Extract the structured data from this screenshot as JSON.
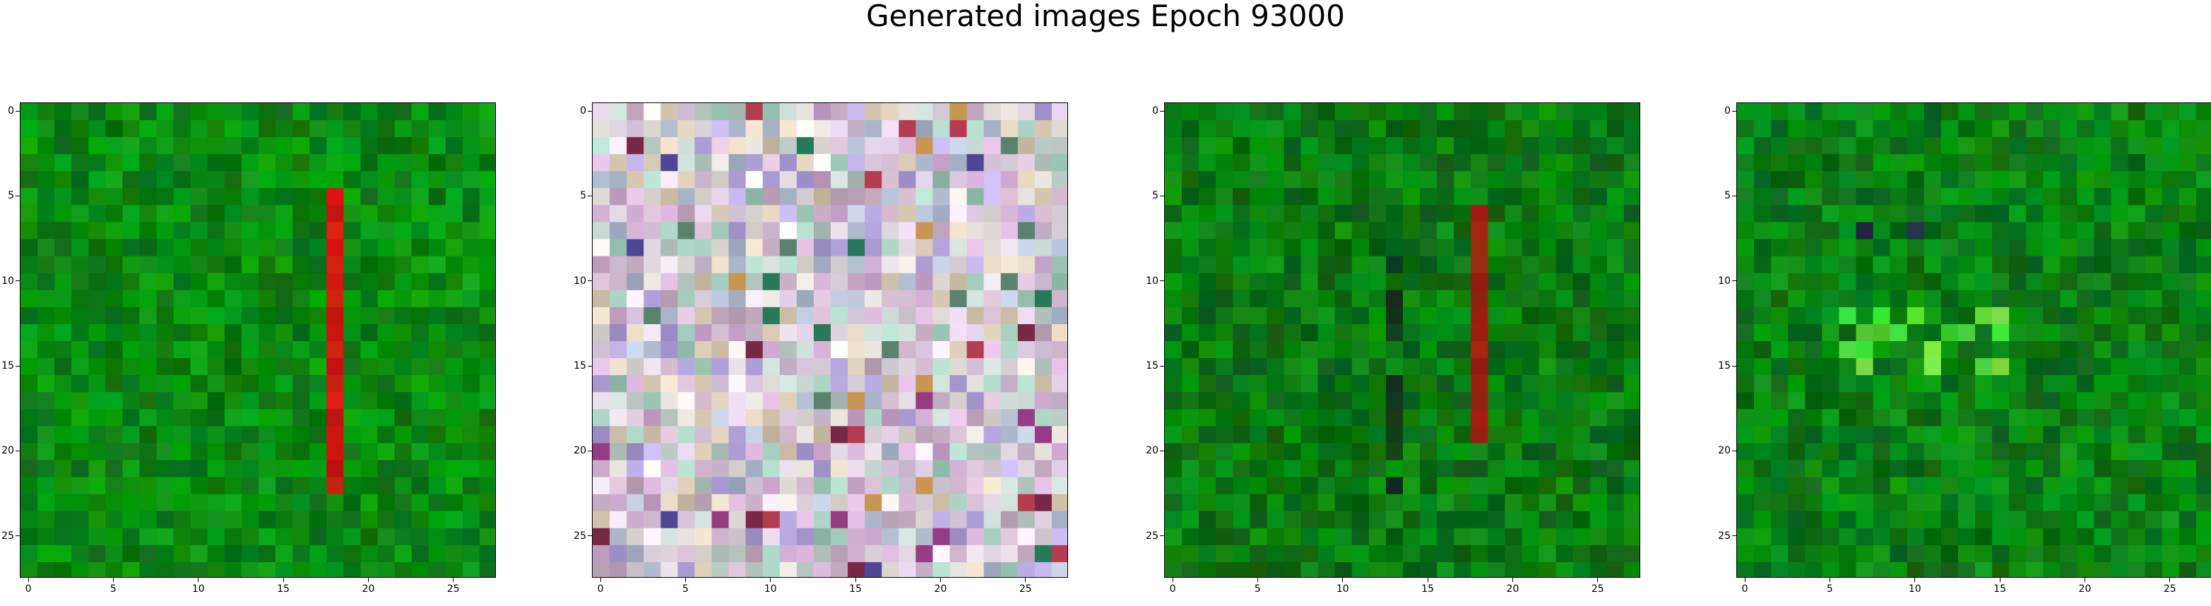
{
  "title": "Generated images Epoch 93000",
  "images": [
    {
      "name": "green-red-stripe",
      "base_color": "#0a8a12",
      "accent_color": "#e21010"
    },
    {
      "name": "pastel-noise",
      "base_color": "#d8c7d4",
      "accent_color": "#7a4aa8"
    },
    {
      "name": "green-dark-stripe",
      "base_color": "#0a7a12",
      "accent_color": "#8b1a10"
    },
    {
      "name": "green-bright-patches",
      "base_color": "#0a7f15",
      "accent_color": "#1ad11d"
    }
  ],
  "axis": {
    "x_ticks": [
      "0",
      "5",
      "10",
      "15",
      "20",
      "25"
    ],
    "y_ticks": [
      "0",
      "5",
      "10",
      "15",
      "20",
      "25"
    ]
  }
}
